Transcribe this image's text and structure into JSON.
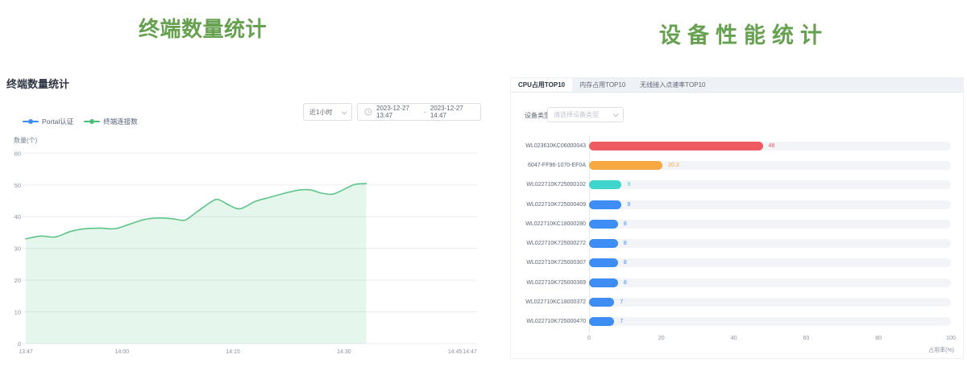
{
  "titles": {
    "left": "终端数量统计",
    "right": "设备性能统计"
  },
  "left_panel": {
    "header": "终端数量统计",
    "time_select": {
      "value": "近1小时"
    },
    "date_range": {
      "start": "2023-12-27 13:47",
      "separator": "-",
      "end": "2023-12-27 14:47"
    },
    "legend": [
      {
        "label": "Portal认证",
        "color": "#3d8bf2"
      },
      {
        "label": "终端连接数",
        "color": "#49bf78"
      }
    ],
    "y_axis_name": "数量(个)"
  },
  "right_panel": {
    "tabs": [
      {
        "label": "CPU占用TOP10",
        "active": true
      },
      {
        "label": "内存占用TOP10",
        "active": false
      },
      {
        "label": "无线接入点速率TOP10",
        "active": false
      }
    ],
    "filter": {
      "label": "设备类型",
      "placeholder": "请选择设备类型"
    }
  },
  "chart_data": [
    {
      "type": "area",
      "title": "终端数量统计",
      "ylabel": "数量(个)",
      "ylim": [
        0,
        60
      ],
      "y_ticks": [
        0,
        10,
        20,
        30,
        40,
        50,
        60
      ],
      "x_total_minutes": 60,
      "x_ticks": [
        {
          "label": "13:47",
          "t": 0
        },
        {
          "label": "14:00",
          "t": 13
        },
        {
          "label": "14:15",
          "t": 28
        },
        {
          "label": "14:30",
          "t": 43
        },
        {
          "label": "14:45",
          "t": 58
        },
        {
          "label": "14:47",
          "t": 60
        }
      ],
      "legend": [
        "Portal认证",
        "终端连接数"
      ],
      "grid": true,
      "series": [
        {
          "name": "终端连接数",
          "color": "#5ec488",
          "fill": "rgba(95,196,135,0.16)",
          "points": [
            [
              0,
              33
            ],
            [
              2,
              33.9
            ],
            [
              4,
              33.6
            ],
            [
              6,
              35.3
            ],
            [
              8,
              36.2
            ],
            [
              10,
              36.4
            ],
            [
              12,
              36.2
            ],
            [
              14,
              37.6
            ],
            [
              16,
              39.1
            ],
            [
              18,
              39.6
            ],
            [
              20,
              39.3
            ],
            [
              21.5,
              38.9
            ],
            [
              23,
              41.3
            ],
            [
              25,
              44.6
            ],
            [
              26,
              45.4
            ],
            [
              27.5,
              43.6
            ],
            [
              29,
              42.5
            ],
            [
              31,
              44.8
            ],
            [
              33,
              46.1
            ],
            [
              35,
              47.4
            ],
            [
              37,
              48.4
            ],
            [
              38.5,
              48.4
            ],
            [
              40,
              47.4
            ],
            [
              41.5,
              47.1
            ],
            [
              43,
              48.6
            ],
            [
              44.5,
              50.2
            ],
            [
              46,
              50.4
            ]
          ]
        }
      ]
    },
    {
      "type": "bar",
      "title": "CPU占用TOP10",
      "xlabel": "占用率(%)",
      "xlim": [
        0,
        100
      ],
      "x_ticks": [
        0,
        20,
        40,
        60,
        80,
        100
      ],
      "rows": [
        {
          "label": "WL023610KC06000043",
          "value": 48,
          "color": "#ee5b61"
        },
        {
          "label": "6047-FF96-1070-EF0A",
          "value": 20.3,
          "color": "#f8a843"
        },
        {
          "label": "WL022710K725000102",
          "value": 9,
          "color": "#3fd5cd"
        },
        {
          "label": "WL022710K725000409",
          "value": 9,
          "color": "#3e8df5"
        },
        {
          "label": "WL022710KC18000280",
          "value": 8,
          "color": "#3e8df5"
        },
        {
          "label": "WL022710K725000272",
          "value": 8,
          "color": "#3e8df5"
        },
        {
          "label": "WL022710K725000307",
          "value": 8,
          "color": "#3e8df5"
        },
        {
          "label": "WL022710K725000369",
          "value": 8,
          "color": "#3e8df5"
        },
        {
          "label": "WL022710KC18000372",
          "value": 7,
          "color": "#3e8df5"
        },
        {
          "label": "WL022710K725000470",
          "value": 7,
          "color": "#3e8df5"
        }
      ]
    }
  ]
}
